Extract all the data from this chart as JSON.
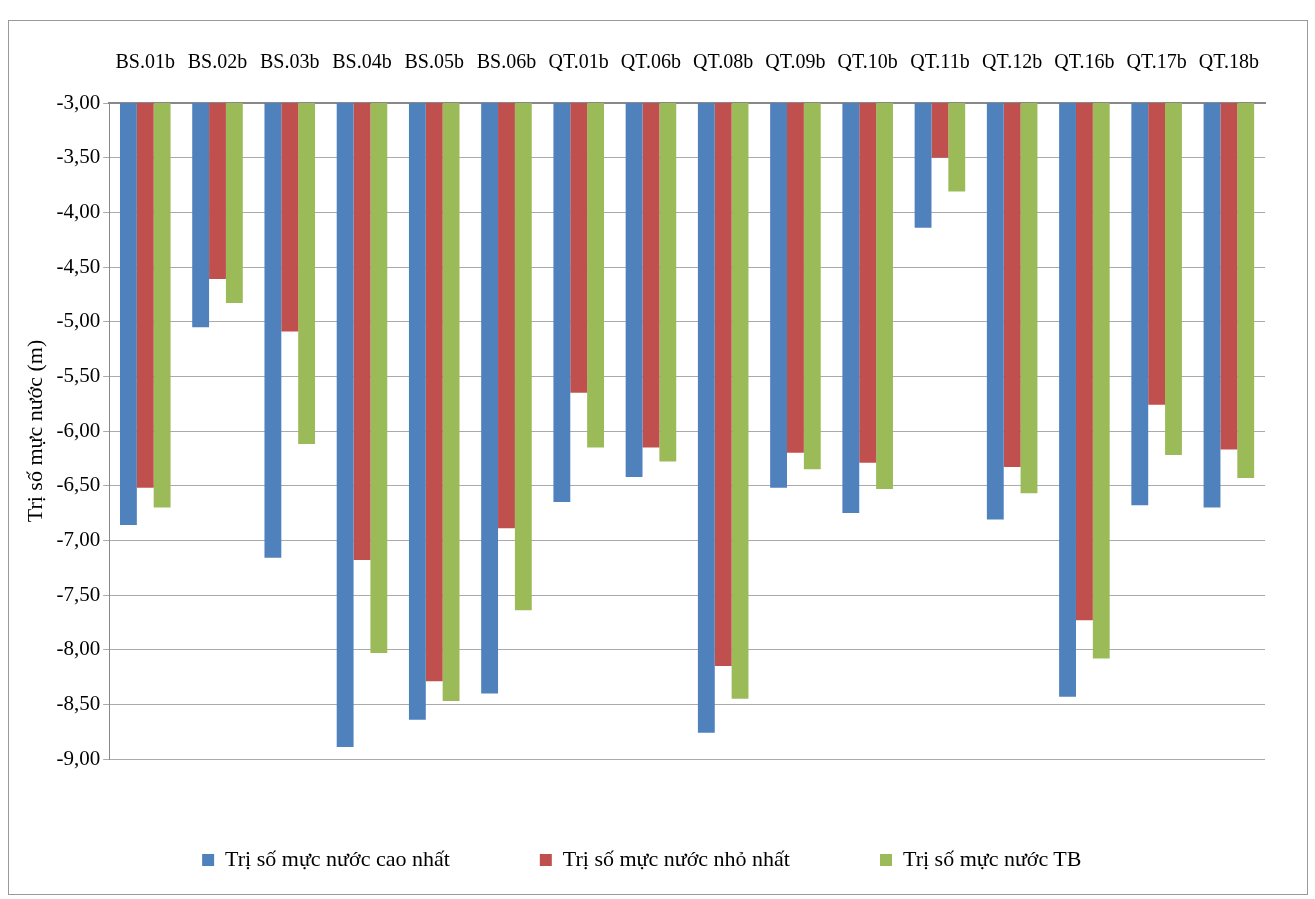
{
  "chart_data": {
    "type": "bar",
    "ylabel": "Trị số mực nước (m)",
    "categories": [
      "BS.01b",
      "BS.02b",
      "BS.03b",
      "BS.04b",
      "BS.05b",
      "BS.06b",
      "QT.01b",
      "QT.06b",
      "QT.08b",
      "QT.09b",
      "QT.10b",
      "QT.11b",
      "QT.12b",
      "QT.16b",
      "QT.17b",
      "QT.18b"
    ],
    "series": [
      {
        "name": "Trị số mực nước cao nhất",
        "color": "#4f81bd",
        "values": [
          -6.86,
          -5.05,
          -7.16,
          -8.89,
          -8.64,
          -8.4,
          -6.65,
          -6.42,
          -8.76,
          -6.52,
          -6.75,
          -4.14,
          -6.81,
          -8.43,
          -6.68,
          -6.7
        ]
      },
      {
        "name": "Trị số mực nước nhỏ nhất",
        "color": "#c0504d",
        "values": [
          -6.52,
          -4.61,
          -5.09,
          -7.18,
          -8.29,
          -6.89,
          -5.65,
          -6.15,
          -8.15,
          -6.2,
          -6.29,
          -3.5,
          -6.33,
          -7.73,
          -5.76,
          -6.17
        ]
      },
      {
        "name": "Trị số mực nước TB",
        "color": "#9bbb59",
        "values": [
          -6.7,
          -4.83,
          -6.12,
          -8.03,
          -8.47,
          -7.64,
          -6.15,
          -6.28,
          -8.45,
          -6.35,
          -6.53,
          -3.81,
          -6.57,
          -8.08,
          -6.22,
          -6.43
        ]
      }
    ],
    "ylim": [
      -9,
      -3
    ],
    "yticks": [
      {
        "value": -3,
        "label": "-3,00"
      },
      {
        "value": -3.5,
        "label": "-3,50"
      },
      {
        "value": -4,
        "label": "-4,00"
      },
      {
        "value": -4.5,
        "label": "-4,50"
      },
      {
        "value": -5,
        "label": "-5,00"
      },
      {
        "value": -5.5,
        "label": "-5,50"
      },
      {
        "value": -6,
        "label": "-6,00"
      },
      {
        "value": -6.5,
        "label": "-6,50"
      },
      {
        "value": -7,
        "label": "-7,00"
      },
      {
        "value": -7.5,
        "label": "-7,50"
      },
      {
        "value": -8,
        "label": "-8,00"
      },
      {
        "value": -8.5,
        "label": "-8,50"
      },
      {
        "value": -9,
        "label": "-9,00"
      }
    ],
    "grid": "y",
    "legend": "bottom"
  }
}
